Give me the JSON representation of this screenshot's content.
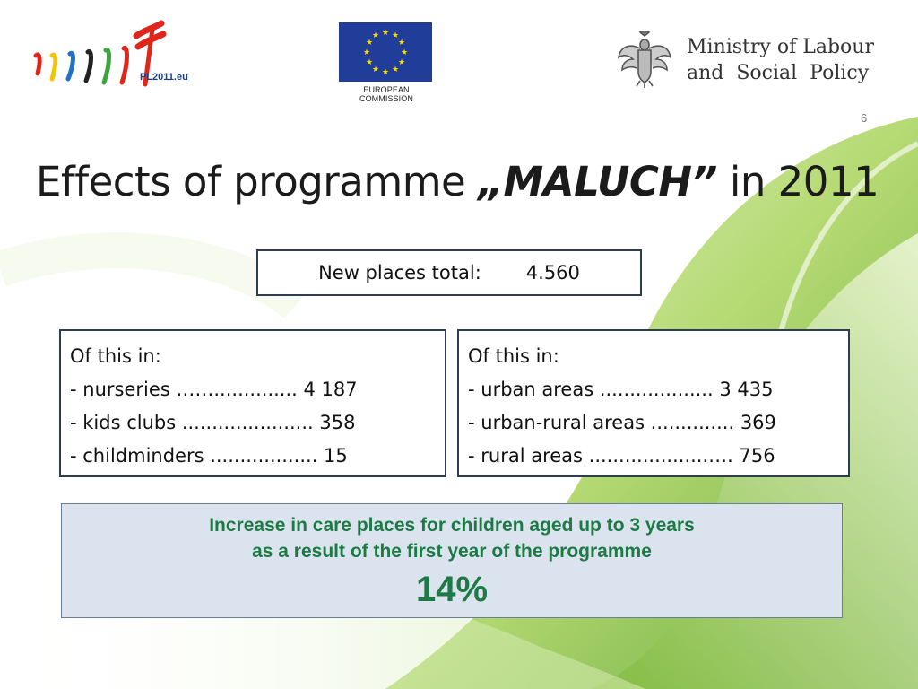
{
  "header": {
    "pl_logo_text": "PL2011.eu",
    "eu_caption": "EUROPEAN COMMISSION",
    "ministry_line1": "Ministry of Labour",
    "ministry_line2": "and  Social  Policy"
  },
  "page_number": "6",
  "title": {
    "prefix": "Effects of programme ",
    "emphasis": "„MALUCH”",
    "suffix": " in 2011"
  },
  "total_box": {
    "label": "New places total:",
    "value": "4.560"
  },
  "left_box": {
    "heading": "Of this in:",
    "items": [
      "- nurseries ……..............  4 187",
      "- kids clubs ...................... 358",
      "- childminders ..................  15"
    ]
  },
  "right_box": {
    "heading": "Of this in:",
    "items": [
      "- urban areas ...................  3 435",
      "- urban-rural areas .............. 369",
      "- rural areas ....................…. 756"
    ]
  },
  "summary": {
    "line1": "Increase in care places for children aged up to 3 years",
    "line2": "as a result of  the first year of the programme",
    "percent": "14%"
  },
  "colors": {
    "accent_green": "#1d7a45",
    "box_border": "#2d3e54",
    "summary_bg": "#dbe4ee",
    "eu_blue": "#1f3d99",
    "eu_star": "#ffdd00"
  }
}
